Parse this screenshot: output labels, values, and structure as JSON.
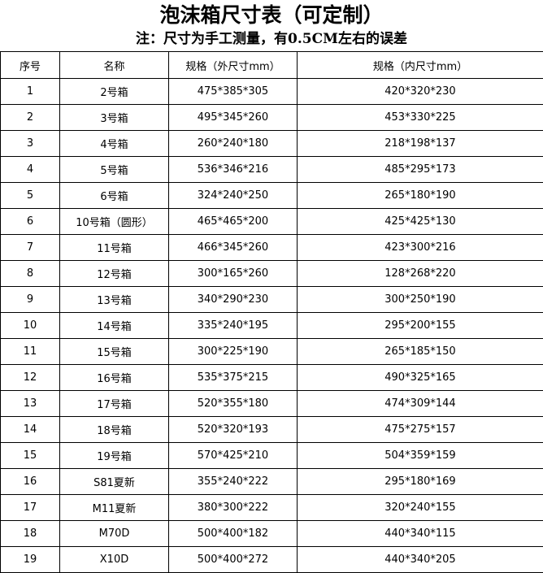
{
  "title": "泡沫箱尺寸表（可定制）",
  "subtitle": "注：尺寸为手工测量，有0.5CM左右的误差",
  "headers": [
    "序号",
    "名称",
    "规格（外尺寸mm）",
    "规格（内尺寸mm）"
  ],
  "rows": [
    [
      "1",
      "2号箱",
      "475*385*305",
      "420*320*230"
    ],
    [
      "2",
      "3号箱",
      "495*345*260",
      "453*330*225"
    ],
    [
      "3",
      "4号箱",
      "260*240*180",
      "218*198*137"
    ],
    [
      "4",
      "5号箱",
      "536*346*216",
      "485*295*173"
    ],
    [
      "5",
      "6号箱",
      "324*240*250",
      "265*180*190"
    ],
    [
      "6",
      "10号箱（圆形）",
      "465*465*200",
      "425*425*130"
    ],
    [
      "7",
      "11号箱",
      "466*345*260",
      "423*300*216"
    ],
    [
      "8",
      "12号箱",
      "300*165*260",
      "128*268*220"
    ],
    [
      "9",
      "13号箱",
      "340*290*230",
      "300*250*190"
    ],
    [
      "10",
      "14号箱",
      "335*240*195",
      "295*200*155"
    ],
    [
      "11",
      "15号箱",
      "300*225*190",
      "265*185*150"
    ],
    [
      "12",
      "16号箱",
      "535*375*215",
      "490*325*165"
    ],
    [
      "13",
      "17号箱",
      "520*355*180",
      "474*309*144"
    ],
    [
      "14",
      "18号箱",
      "520*320*193",
      "475*275*157"
    ],
    [
      "15",
      "19号箱",
      "570*425*210",
      "504*359*159"
    ],
    [
      "16",
      "S81夏新",
      "355*240*222",
      "295*180*169"
    ],
    [
      "17",
      "M11夏新",
      "380*300*222",
      "320*240*155"
    ],
    [
      "18",
      "M70D",
      "500*400*182",
      "440*340*115"
    ],
    [
      "19",
      "X10D",
      "500*400*272",
      "440*340*205"
    ]
  ]
}
